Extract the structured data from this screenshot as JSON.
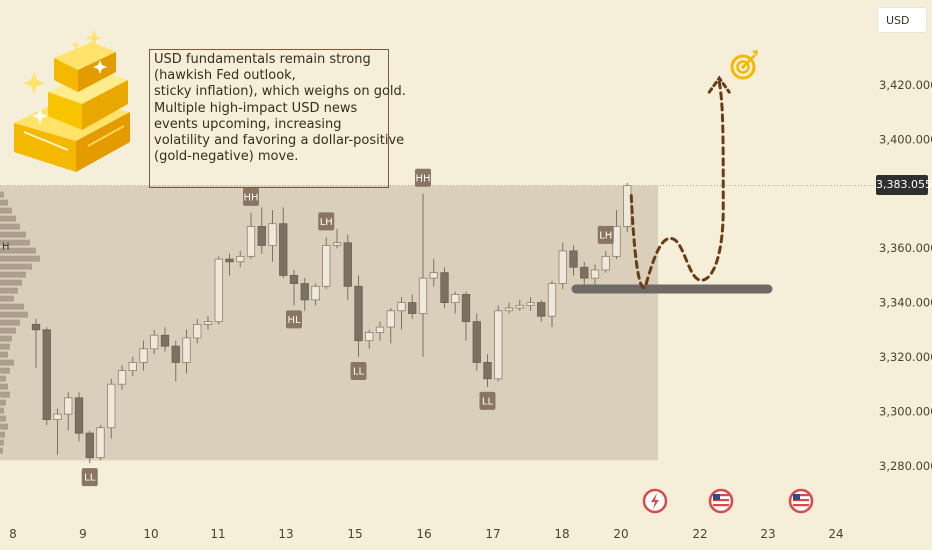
{
  "currency_button": {
    "label": "USD"
  },
  "current_price": {
    "label": "3,383.055",
    "value": 3383.055
  },
  "annotation": {
    "lines": [
      "USD fundamentals remain strong",
      "(hawkish Fed outlook,",
      "sticky inflation), which weighs on gold.",
      "Multiple high-impact USD news",
      "events upcoming, increasing",
      "volatility and favoring a dollar-positive",
      "(gold-negative) move."
    ]
  },
  "colors": {
    "background": "#f5eed8",
    "range_box": "#d7ccb9",
    "up_candle": "#efe9dc",
    "down_candle": "#7d7163",
    "badge": "#8a7462",
    "projection": "#6b3d14",
    "support": "#6f6a66",
    "gold": "#f5b800",
    "event_red": "#d94a4a"
  },
  "icons": {
    "gold_bars": "gold-bars-icon",
    "target": "target-icon",
    "lightning": "lightning-icon",
    "usa_flag": "us-flag-icon"
  },
  "chart_data": {
    "type": "candlestick",
    "symbol_currency": "USD",
    "ylim": [
      3268,
      3438
    ],
    "y_ticks": [
      {
        "value": 3280,
        "label": "3,280.000"
      },
      {
        "value": 3300,
        "label": "3,300.000"
      },
      {
        "value": 3320,
        "label": "3,320.000"
      },
      {
        "value": 3340,
        "label": "3,340.000"
      },
      {
        "value": 3360,
        "label": "3,360.000"
      },
      {
        "value": 3380,
        "label": "3,380.000"
      },
      {
        "value": 3400,
        "label": "3,400.000"
      },
      {
        "value": 3420,
        "label": "3,420.000"
      }
    ],
    "x_ticks": [
      "8",
      "9",
      "10",
      "11",
      "13",
      "15",
      "16",
      "17",
      "18",
      "20",
      "22",
      "23",
      "24"
    ],
    "range_box": {
      "top": 3383,
      "bottom": 3282
    },
    "support_level": 3345,
    "candles": [
      {
        "o": 3332,
        "h": 3334,
        "l": 3316,
        "c": 3330
      },
      {
        "o": 3330,
        "h": 3331,
        "l": 3295,
        "c": 3297
      },
      {
        "o": 3297,
        "h": 3301,
        "l": 3284,
        "c": 3299
      },
      {
        "o": 3299,
        "h": 3307,
        "l": 3293,
        "c": 3305
      },
      {
        "o": 3305,
        "h": 3307,
        "l": 3289,
        "c": 3292
      },
      {
        "o": 3292,
        "h": 3293,
        "l": 3281,
        "c": 3283
      },
      {
        "o": 3283,
        "h": 3295,
        "l": 3282,
        "c": 3294
      },
      {
        "o": 3294,
        "h": 3312,
        "l": 3290,
        "c": 3310
      },
      {
        "o": 3310,
        "h": 3317,
        "l": 3308,
        "c": 3315
      },
      {
        "o": 3315,
        "h": 3320,
        "l": 3313,
        "c": 3318
      },
      {
        "o": 3318,
        "h": 3326,
        "l": 3315,
        "c": 3323
      },
      {
        "o": 3323,
        "h": 3330,
        "l": 3321,
        "c": 3328
      },
      {
        "o": 3328,
        "h": 3331,
        "l": 3322,
        "c": 3324
      },
      {
        "o": 3324,
        "h": 3326,
        "l": 3311,
        "c": 3318
      },
      {
        "o": 3318,
        "h": 3330,
        "l": 3314,
        "c": 3327
      },
      {
        "o": 3327,
        "h": 3334,
        "l": 3325,
        "c": 3332
      },
      {
        "o": 3332,
        "h": 3335,
        "l": 3330,
        "c": 3333
      },
      {
        "o": 3333,
        "h": 3357,
        "l": 3332,
        "c": 3356
      },
      {
        "o": 3356,
        "h": 3358,
        "l": 3350,
        "c": 3355
      },
      {
        "o": 3355,
        "h": 3359,
        "l": 3353,
        "c": 3357
      },
      {
        "o": 3357,
        "h": 3373,
        "l": 3356,
        "c": 3368
      },
      {
        "o": 3368,
        "h": 3375,
        "l": 3358,
        "c": 3361
      },
      {
        "o": 3361,
        "h": 3374,
        "l": 3355,
        "c": 3369
      },
      {
        "o": 3369,
        "h": 3375,
        "l": 3349,
        "c": 3350
      },
      {
        "o": 3350,
        "h": 3352,
        "l": 3339,
        "c": 3347
      },
      {
        "o": 3347,
        "h": 3349,
        "l": 3337,
        "c": 3341
      },
      {
        "o": 3341,
        "h": 3347,
        "l": 3339,
        "c": 3346
      },
      {
        "o": 3346,
        "h": 3364,
        "l": 3345,
        "c": 3361
      },
      {
        "o": 3361,
        "h": 3367,
        "l": 3360,
        "c": 3362
      },
      {
        "o": 3362,
        "h": 3365,
        "l": 3341,
        "c": 3346
      },
      {
        "o": 3346,
        "h": 3350,
        "l": 3320,
        "c": 3326
      },
      {
        "o": 3326,
        "h": 3330,
        "l": 3323,
        "c": 3329
      },
      {
        "o": 3329,
        "h": 3333,
        "l": 3326,
        "c": 3331
      },
      {
        "o": 3331,
        "h": 3338,
        "l": 3325,
        "c": 3337
      },
      {
        "o": 3337,
        "h": 3342,
        "l": 3330,
        "c": 3340
      },
      {
        "o": 3340,
        "h": 3343,
        "l": 3334,
        "c": 3336
      },
      {
        "o": 3336,
        "h": 3380,
        "l": 3320,
        "c": 3349
      },
      {
        "o": 3349,
        "h": 3356,
        "l": 3346,
        "c": 3351
      },
      {
        "o": 3351,
        "h": 3353,
        "l": 3338,
        "c": 3340
      },
      {
        "o": 3340,
        "h": 3344,
        "l": 3336,
        "c": 3343
      },
      {
        "o": 3343,
        "h": 3344,
        "l": 3326,
        "c": 3333
      },
      {
        "o": 3333,
        "h": 3336,
        "l": 3315,
        "c": 3318
      },
      {
        "o": 3318,
        "h": 3321,
        "l": 3309,
        "c": 3312
      },
      {
        "o": 3312,
        "h": 3339,
        "l": 3311,
        "c": 3337
      },
      {
        "o": 3337,
        "h": 3340,
        "l": 3336,
        "c": 3338
      },
      {
        "o": 3338,
        "h": 3341,
        "l": 3337,
        "c": 3339
      },
      {
        "o": 3339,
        "h": 3342,
        "l": 3337,
        "c": 3340
      },
      {
        "o": 3340,
        "h": 3341,
        "l": 3333,
        "c": 3335
      },
      {
        "o": 3335,
        "h": 3348,
        "l": 3331,
        "c": 3347
      },
      {
        "o": 3347,
        "h": 3362,
        "l": 3345,
        "c": 3359
      },
      {
        "o": 3359,
        "h": 3361,
        "l": 3350,
        "c": 3353
      },
      {
        "o": 3353,
        "h": 3355,
        "l": 3346,
        "c": 3349
      },
      {
        "o": 3349,
        "h": 3354,
        "l": 3345,
        "c": 3352
      },
      {
        "o": 3352,
        "h": 3359,
        "l": 3351,
        "c": 3357
      },
      {
        "o": 3357,
        "h": 3374,
        "l": 3356,
        "c": 3368
      },
      {
        "o": 3368,
        "h": 3384,
        "l": 3366,
        "c": 3383
      }
    ],
    "structure_labels": [
      {
        "label": "HH",
        "candle": 20
      },
      {
        "label": "LH",
        "candle": 27
      },
      {
        "label": "HH",
        "candle": 36
      },
      {
        "label": "LH",
        "candle": 53
      },
      {
        "label": "HL",
        "candle": 24
      },
      {
        "label": "LL",
        "candle": 30
      },
      {
        "label": "LL",
        "candle": 42
      },
      {
        "label": "LL",
        "candle": 5
      },
      {
        "label": "H",
        "candle": -1
      }
    ],
    "projection_target": 3424,
    "events": [
      "lightning",
      "usa",
      "usa"
    ]
  }
}
